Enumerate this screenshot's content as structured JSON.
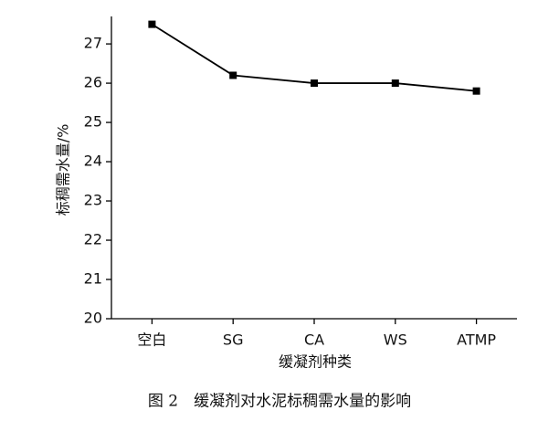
{
  "chart_data": {
    "type": "line",
    "xlabel": "缓凝剂种类",
    "ylabel": "标稠需水量/%",
    "caption": "图 2　缓凝剂对水泥标稠需水量的影响",
    "categories": [
      "空白",
      "SG",
      "CA",
      "WS",
      "ATMP"
    ],
    "series": [
      {
        "name": "标稠需水量",
        "color": "#000000",
        "values": [
          27.5,
          26.2,
          26.0,
          26.0,
          25.8
        ]
      }
    ],
    "ylim": [
      20,
      27.7
    ],
    "yticks": [
      20,
      21,
      22,
      23,
      24,
      25,
      26,
      27
    ],
    "grid": false,
    "marker": "square"
  }
}
